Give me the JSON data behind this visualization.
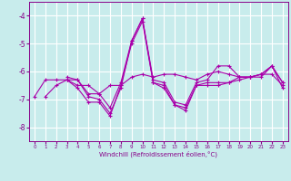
{
  "xlabel": "Windchill (Refroidissement éolien,°C)",
  "bg_color": "#c8ecec",
  "grid_color": "#ffffff",
  "line_color": "#aa00aa",
  "ylim": [
    -8.5,
    -3.5
  ],
  "xlim": [
    -0.5,
    23.5
  ],
  "yticks": [
    -8,
    -7,
    -6,
    -5,
    -4
  ],
  "xticks": [
    0,
    1,
    2,
    3,
    4,
    5,
    6,
    7,
    8,
    9,
    10,
    11,
    12,
    13,
    14,
    15,
    16,
    17,
    18,
    19,
    20,
    21,
    22,
    23
  ],
  "series": [
    [
      null,
      -6.9,
      -6.5,
      -6.3,
      -6.3,
      -6.9,
      -7.0,
      -7.5,
      -6.6,
      -4.9,
      -4.1,
      -6.4,
      -6.5,
      -7.2,
      -7.3,
      -6.5,
      -6.4,
      -6.4,
      -6.4,
      -6.2,
      -6.2,
      -6.1,
      -6.1,
      -6.5
    ],
    [
      -6.9,
      -6.3,
      -6.3,
      -6.3,
      -6.5,
      -6.5,
      -6.8,
      -6.5,
      -6.5,
      -6.2,
      -6.1,
      -6.2,
      -6.1,
      -6.1,
      -6.2,
      -6.3,
      -6.1,
      -6.0,
      -6.1,
      -6.2,
      -6.2,
      -6.2,
      -5.8,
      -6.4
    ],
    [
      null,
      null,
      null,
      -6.3,
      -6.6,
      -7.1,
      -7.1,
      -7.6,
      -6.5,
      -5.0,
      -4.2,
      -6.4,
      -6.6,
      -7.2,
      -7.4,
      -6.5,
      -6.5,
      -6.5,
      -6.4,
      -6.3,
      -6.2,
      -6.1,
      -5.8,
      -6.6
    ],
    [
      null,
      null,
      null,
      -6.2,
      -6.3,
      -6.8,
      -6.8,
      -7.3,
      -6.4,
      -4.9,
      -4.1,
      -6.3,
      -6.4,
      -7.1,
      -7.2,
      -6.4,
      -6.3,
      -5.8,
      -5.8,
      -6.2,
      -6.2,
      -6.1,
      -5.8,
      -6.4
    ]
  ]
}
